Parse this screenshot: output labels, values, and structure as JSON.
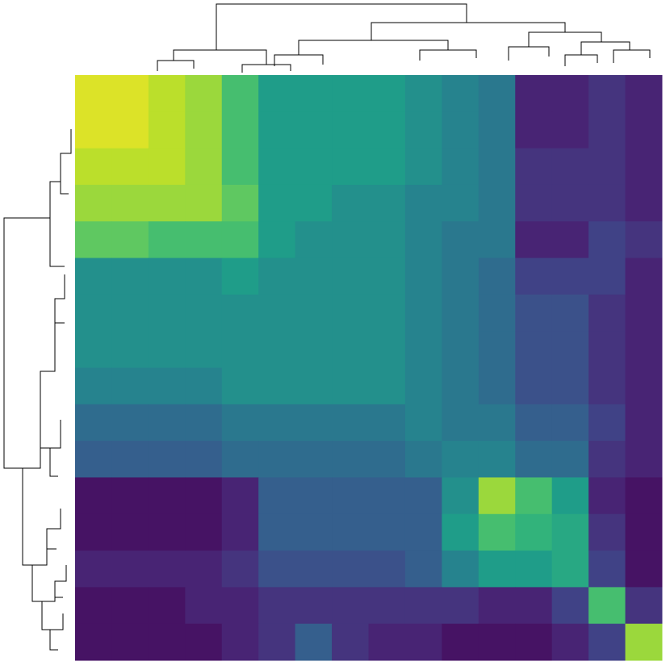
{
  "chart_data": {
    "type": "heatmap",
    "colormap": "viridis",
    "clim": [
      0,
      1
    ],
    "values": [
      [
        0.95,
        0.95,
        0.9,
        0.85,
        0.7,
        0.55,
        0.55,
        0.55,
        0.55,
        0.5,
        0.45,
        0.4,
        0.1,
        0.1,
        0.15,
        0.1
      ],
      [
        0.95,
        0.95,
        0.9,
        0.85,
        0.7,
        0.55,
        0.55,
        0.55,
        0.55,
        0.5,
        0.45,
        0.4,
        0.1,
        0.1,
        0.15,
        0.1
      ],
      [
        0.9,
        0.9,
        0.9,
        0.85,
        0.7,
        0.55,
        0.55,
        0.55,
        0.55,
        0.5,
        0.45,
        0.4,
        0.15,
        0.15,
        0.15,
        0.1
      ],
      [
        0.85,
        0.85,
        0.85,
        0.85,
        0.75,
        0.55,
        0.55,
        0.5,
        0.5,
        0.45,
        0.45,
        0.4,
        0.15,
        0.15,
        0.15,
        0.1
      ],
      [
        0.75,
        0.75,
        0.7,
        0.7,
        0.7,
        0.55,
        0.5,
        0.5,
        0.5,
        0.45,
        0.4,
        0.4,
        0.1,
        0.1,
        0.2,
        0.15
      ],
      [
        0.5,
        0.5,
        0.5,
        0.5,
        0.55,
        0.5,
        0.5,
        0.5,
        0.5,
        0.45,
        0.4,
        0.35,
        0.2,
        0.2,
        0.2,
        0.1
      ],
      [
        0.5,
        0.5,
        0.5,
        0.5,
        0.5,
        0.5,
        0.5,
        0.5,
        0.5,
        0.45,
        0.4,
        0.35,
        0.25,
        0.25,
        0.15,
        0.1
      ],
      [
        0.5,
        0.5,
        0.5,
        0.5,
        0.5,
        0.5,
        0.5,
        0.5,
        0.5,
        0.45,
        0.4,
        0.35,
        0.25,
        0.25,
        0.15,
        0.1
      ],
      [
        0.45,
        0.45,
        0.45,
        0.45,
        0.5,
        0.5,
        0.5,
        0.5,
        0.5,
        0.45,
        0.4,
        0.35,
        0.25,
        0.25,
        0.15,
        0.1
      ],
      [
        0.35,
        0.35,
        0.35,
        0.35,
        0.4,
        0.4,
        0.4,
        0.4,
        0.4,
        0.45,
        0.4,
        0.4,
        0.3,
        0.3,
        0.2,
        0.1
      ],
      [
        0.3,
        0.3,
        0.3,
        0.3,
        0.35,
        0.35,
        0.35,
        0.35,
        0.35,
        0.4,
        0.45,
        0.45,
        0.35,
        0.35,
        0.15,
        0.1
      ],
      [
        0.05,
        0.05,
        0.05,
        0.05,
        0.1,
        0.3,
        0.3,
        0.3,
        0.3,
        0.3,
        0.5,
        0.85,
        0.7,
        0.55,
        0.1,
        0.05
      ],
      [
        0.05,
        0.05,
        0.05,
        0.05,
        0.1,
        0.3,
        0.3,
        0.3,
        0.3,
        0.3,
        0.55,
        0.7,
        0.65,
        0.6,
        0.15,
        0.05
      ],
      [
        0.1,
        0.1,
        0.1,
        0.1,
        0.15,
        0.25,
        0.25,
        0.25,
        0.25,
        0.3,
        0.45,
        0.55,
        0.55,
        0.6,
        0.2,
        0.05
      ],
      [
        0.05,
        0.05,
        0.05,
        0.1,
        0.1,
        0.15,
        0.15,
        0.15,
        0.15,
        0.15,
        0.15,
        0.1,
        0.1,
        0.2,
        0.7,
        0.15
      ],
      [
        0.05,
        0.05,
        0.05,
        0.05,
        0.1,
        0.15,
        0.3,
        0.15,
        0.1,
        0.1,
        0.05,
        0.05,
        0.05,
        0.1,
        0.2,
        0.85
      ]
    ]
  }
}
